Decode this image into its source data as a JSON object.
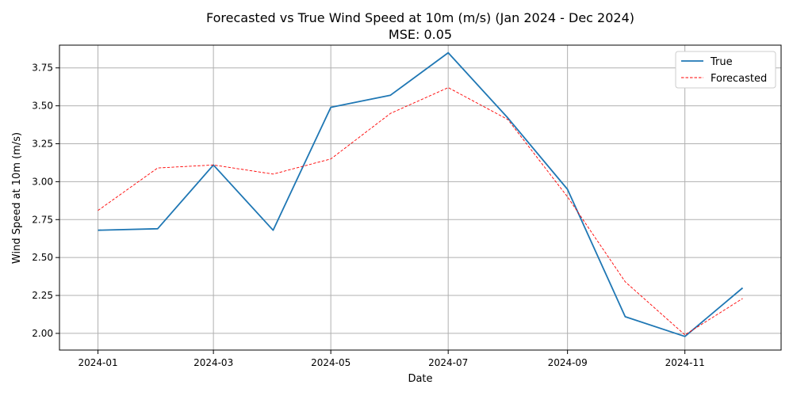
{
  "chart_data": {
    "type": "line",
    "title": "Forecasted vs True Wind Speed at 10m (m/s) (Jan 2024 - Dec 2024)",
    "subtitle": "MSE: 0.05",
    "xlabel": "Date",
    "ylabel": "Wind Speed at 10m (m/s)",
    "x": [
      "2024-01-01",
      "2024-02-01",
      "2024-03-01",
      "2024-04-01",
      "2024-05-01",
      "2024-06-01",
      "2024-07-01",
      "2024-08-01",
      "2024-09-01",
      "2024-10-01",
      "2024-11-01",
      "2024-12-01"
    ],
    "xlim": [
      "2023-12-12",
      "2024-12-21"
    ],
    "ylim": [
      1.89,
      3.9
    ],
    "xticks": [
      "2024-01",
      "2024-03",
      "2024-05",
      "2024-07",
      "2024-09",
      "2024-11"
    ],
    "yticks": [
      "2.00",
      "2.25",
      "2.50",
      "2.75",
      "3.00",
      "3.25",
      "3.50",
      "3.75"
    ],
    "grid": true,
    "legend_position": "top-right",
    "series": [
      {
        "name": "True",
        "color": "#1f77b4",
        "style": "solid",
        "values": [
          2.68,
          2.69,
          3.11,
          2.68,
          3.49,
          3.57,
          3.85,
          3.42,
          2.95,
          2.11,
          1.98,
          2.3
        ]
      },
      {
        "name": "Forecasted",
        "color": "#ff0000",
        "style": "dashed",
        "values": [
          2.81,
          3.09,
          3.11,
          3.05,
          3.15,
          3.45,
          3.62,
          3.41,
          2.9,
          2.34,
          1.99,
          2.23
        ]
      }
    ]
  }
}
